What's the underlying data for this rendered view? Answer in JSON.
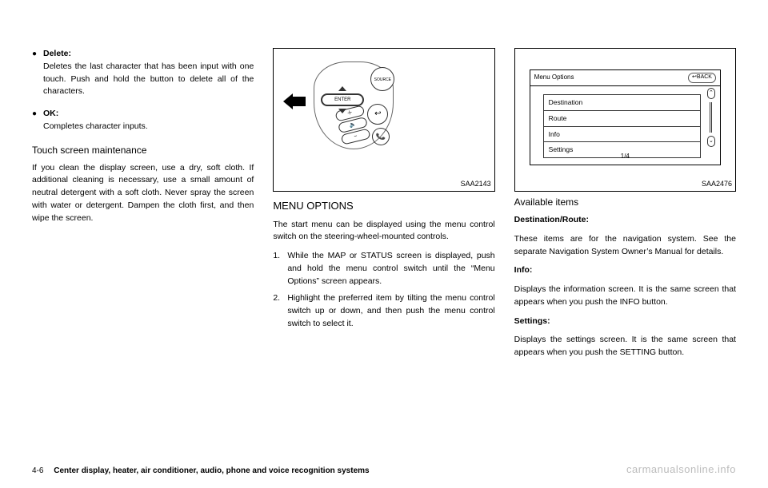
{
  "col1": {
    "bullet1": {
      "label": "Delete:",
      "desc": "Deletes the last character that has been input with one touch. Push and hold the button to delete all of the characters."
    },
    "bullet2": {
      "label": "OK:",
      "desc": "Completes character inputs."
    },
    "maint_h": "Touch screen maintenance",
    "maint_p": "If you clean the display screen, use a dry, soft cloth. If additional cleaning is necessary, use a small amount of neutral detergent with a soft cloth. Never spray the screen with water or detergent. Dampen the cloth first, and then wipe the screen."
  },
  "col2": {
    "fig_label": "SAA2143",
    "fig": {
      "source": "SOURCE",
      "enter": "ENTER",
      "back": "↩",
      "vol_plus": "＋",
      "vol_icon": "🔈",
      "vol_minus": "−",
      "phone": "📞"
    },
    "h": "MENU OPTIONS",
    "p1": "The start menu can be displayed using the menu control switch on the steering-wheel-mounted controls.",
    "n1": "While the MAP or STATUS screen is displayed, push and hold the menu control switch until the “Menu Options” screen appears.",
    "n2": "Highlight the preferred item by tilting the menu control switch up or down, and then push the menu control switch to select it."
  },
  "col3": {
    "fig_label": "SAA2476",
    "screen": {
      "title": "Menu Options",
      "back": "↩BACK",
      "items": [
        "Destination",
        "Route",
        "Info",
        "Settings"
      ],
      "page": "1/4",
      "up": "⌃",
      "dn": "⌄"
    },
    "h": "Available items",
    "s1_h": "Destination/Route:",
    "s1_p": "These items are for the navigation system. See the separate Navigation System Owner’s Manual for details.",
    "s2_h": "Info:",
    "s2_p": "Displays the information screen. It is the same screen that appears when you push the INFO button.",
    "s3_h": "Settings:",
    "s3_p": "Displays the settings screen. It is the same screen that appears when you push the SETTING button."
  },
  "footer": {
    "page": "4-6",
    "section": "Center display, heater, air conditioner, audio, phone and voice recognition systems"
  },
  "watermark": "carmanualsonline.info"
}
